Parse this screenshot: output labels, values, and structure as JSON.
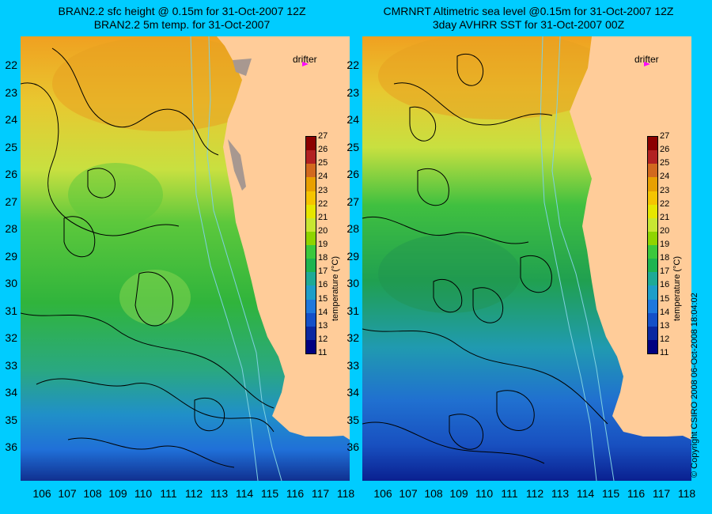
{
  "left_panel": {
    "title_line1": "BRAN2.2 sfc height @ 0.15m for 31-Oct-2007 12Z",
    "title_line2": "BRAN2.2 5m temp. for 31-Oct-2007",
    "drifter_label": "drifter"
  },
  "right_panel": {
    "title_line1": "CMRNRT Altimetric sea level  @0.15m  for 31-Oct-2007 12Z",
    "title_line2": "3day AVHRR SST for 31-Oct-2007 00Z",
    "drifter_label": "drifter"
  },
  "axes": {
    "latitudes": [
      "22",
      "23",
      "24",
      "25",
      "26",
      "27",
      "28",
      "29",
      "30",
      "31",
      "32",
      "33",
      "34",
      "35",
      "36"
    ],
    "longitudes": [
      "106",
      "107",
      "108",
      "109",
      "110",
      "111",
      "112",
      "113",
      "114",
      "115",
      "116",
      "117",
      "118"
    ]
  },
  "colorbar": {
    "title": "temperature (°C)",
    "ticks": [
      "27",
      "26",
      "25",
      "24",
      "23",
      "22",
      "21",
      "20",
      "19",
      "18",
      "17",
      "16",
      "15",
      "14",
      "13",
      "12",
      "11"
    ],
    "colors": [
      "#8b0000",
      "#b22222",
      "#d2691e",
      "#e8a000",
      "#f5c400",
      "#e6e600",
      "#c8e632",
      "#8fd400",
      "#3cc83c",
      "#1eb450",
      "#1eaa96",
      "#1e9ec8",
      "#1e78dc",
      "#1450c8",
      "#0a28a0",
      "#000080"
    ]
  },
  "colors": {
    "background": "#00ccff",
    "land": "#ffcc99",
    "coast_grey": "#a89890",
    "contour": "#000000",
    "bathymetry": "#7fd0e0",
    "drifter": "#ff00ff"
  },
  "copyright": "© Copyright CSIRO 2008    06-Oct-2008 18:04:02"
}
